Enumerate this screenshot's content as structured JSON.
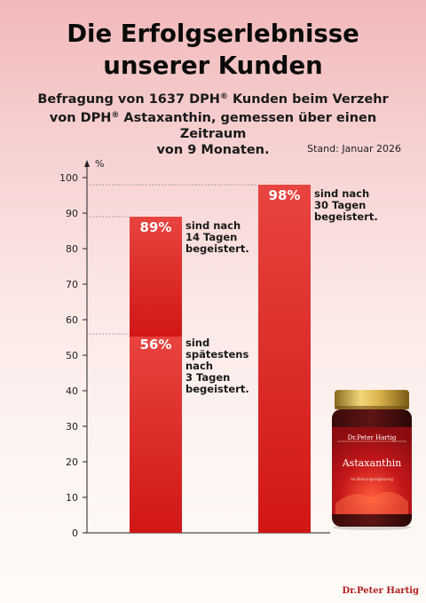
{
  "title": {
    "line1": "Die Erfolgserlebnisse",
    "line2": "unserer Kunden"
  },
  "subtitle": {
    "part1": "Befragung von 1637 DPH",
    "reg": "®",
    "part2": " Kunden beim Verzehr",
    "part3": "von DPH",
    "part4": " Astaxanthin, gemessen über einen Zeitraum",
    "part5": "von 9 Monaten."
  },
  "stand": "Stand: Januar 2026",
  "chart_data": {
    "type": "bar",
    "ylabel": "%",
    "ylim": [
      0,
      100
    ],
    "yticks": [
      "0",
      "10",
      "20",
      "30",
      "40",
      "50",
      "60",
      "70",
      "80",
      "90",
      "100"
    ],
    "grid": false,
    "bars": [
      {
        "segments": [
          {
            "value": 56,
            "label": "56%",
            "annotation": "sind\nspätestens\nnach\n3 Tagen\nbegeistert."
          },
          {
            "value": 89,
            "label": "89%",
            "annotation": "sind nach\n14 Tagen\nbegeistert."
          }
        ]
      },
      {
        "segments": [
          {
            "value": 98,
            "label": "98%",
            "annotation": "sind nach\n30 Tagen\nbegeistert."
          }
        ]
      }
    ]
  },
  "product": {
    "brand": "Dr.Peter Hartig",
    "name": "Astaxanthin",
    "small_text": "als Nahrungsergänzung"
  },
  "footer_brand": "Dr.Peter Hartig",
  "colors": {
    "bar_top": "#e63a36",
    "bar_bottom": "#d21a18",
    "text": "#111111"
  }
}
